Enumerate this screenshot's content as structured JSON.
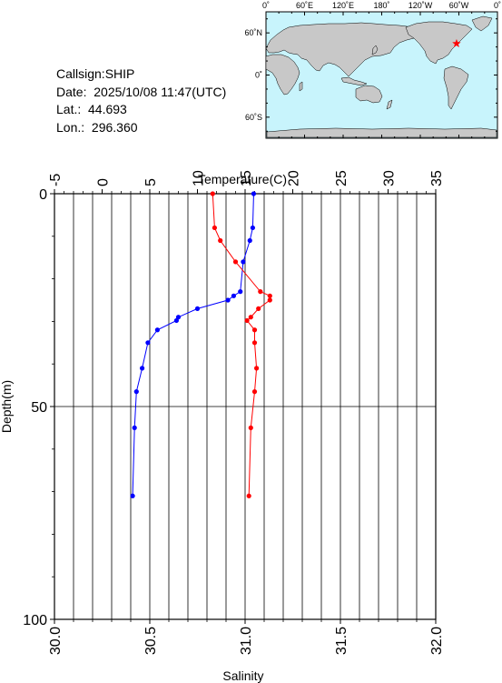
{
  "station": {
    "callsign": "Callsign:SHIP",
    "date": "Date:  2025/10/08 11:47(UTC)",
    "lat": "Lat.:  44.693",
    "lon": "Lon.:  296.360"
  },
  "map": {
    "lon_labels": [
      "0˚",
      "60˚E",
      "120˚E",
      "180˚",
      "120˚W",
      "60˚W",
      "0˚"
    ],
    "lat_labels": [
      "60˚N",
      "0˚",
      "60˚S"
    ],
    "colors": {
      "ocean": "#c8f4fc",
      "land": "#c8c8c8",
      "marker": "#ff0000"
    },
    "marker_icon": "star-icon",
    "marker_lon": 296.36,
    "marker_lat": 44.693
  },
  "chart_data": {
    "type": "line",
    "title": "",
    "x_top_label": "Temperature(C)",
    "x_bottom_label": "Salinity",
    "y_label": "Depth(m)",
    "temperature_range": [
      -5,
      35
    ],
    "salinity_range": [
      30.0,
      32.0
    ],
    "depth_range": [
      0,
      100
    ],
    "y_inverted": true,
    "temperature_ticks": [
      "-5",
      "0",
      "5",
      "10",
      "15",
      "20",
      "25",
      "30",
      "35"
    ],
    "salinity_ticks": [
      "30.0",
      "30.5",
      "31.0",
      "31.5",
      "32.0"
    ],
    "depth_ticks": [
      "0",
      "50",
      "100"
    ],
    "grid": true,
    "series": [
      {
        "name": "",
        "axis": "temperature",
        "color": "#0000ff",
        "depth": [
          0,
          8,
          11,
          16,
          23,
          24,
          25,
          27,
          29,
          29.8,
          32,
          35,
          41,
          46.5,
          55,
          71
        ],
        "values": [
          15.9,
          15.8,
          15.5,
          14.8,
          14.5,
          13.8,
          13.2,
          10.0,
          8.0,
          7.8,
          5.8,
          4.8,
          4.2,
          3.6,
          3.4,
          3.2
        ]
      },
      {
        "name": "",
        "axis": "salinity",
        "color": "#ff0000",
        "depth": [
          0,
          8,
          11,
          16,
          23,
          24,
          25,
          27,
          29,
          29.8,
          32,
          35,
          41,
          46.5,
          55,
          71
        ],
        "values": [
          30.83,
          30.84,
          30.87,
          30.95,
          31.08,
          31.13,
          31.13,
          31.07,
          31.03,
          31.01,
          31.05,
          31.05,
          31.06,
          31.05,
          31.03,
          31.02
        ]
      }
    ]
  }
}
